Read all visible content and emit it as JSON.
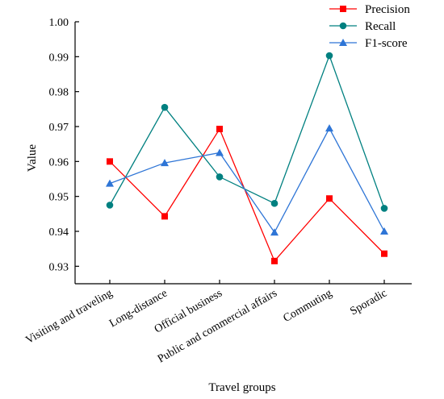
{
  "chart_data": {
    "type": "line",
    "title": "",
    "xlabel": "Travel groups",
    "ylabel": "Value",
    "categories": [
      "Visiting and traveling",
      "Long-distance",
      "Official business",
      "Public and commercial affairs",
      "Commuting",
      "Sporadic"
    ],
    "ylim": [
      0.925,
      1.0
    ],
    "yticks": [
      "0.93",
      "0.94",
      "0.95",
      "0.96",
      "0.97",
      "0.98",
      "0.99",
      "1.00"
    ],
    "grid": false,
    "legend_position": "top-right",
    "series": [
      {
        "name": "Precision",
        "color": "#ff0000",
        "marker": "square",
        "values": [
          0.96,
          0.9443,
          0.9693,
          0.9315,
          0.9494,
          0.9336
        ]
      },
      {
        "name": "Recall",
        "color": "#008080",
        "marker": "circle",
        "values": [
          0.9475,
          0.9755,
          0.9556,
          0.948,
          0.9903,
          0.9466
        ]
      },
      {
        "name": "F1-score",
        "color": "#2e75d6",
        "marker": "triangle",
        "values": [
          0.9537,
          0.9596,
          0.9625,
          0.9397,
          0.9695,
          0.94
        ]
      }
    ]
  }
}
